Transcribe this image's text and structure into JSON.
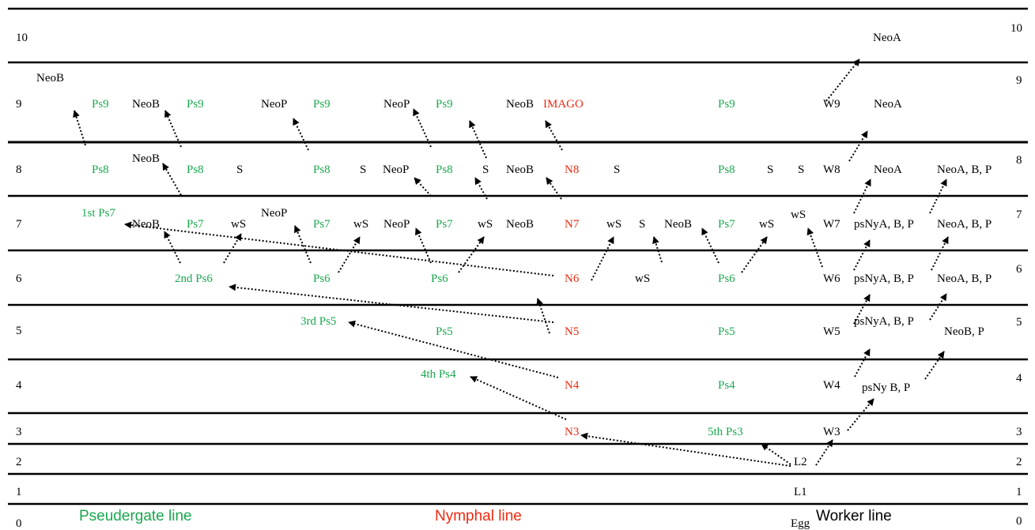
{
  "colors": {
    "pseudergate": "#1aa84f",
    "nymph": "#ee2a10",
    "worker": "#000000",
    "line": "#000000"
  },
  "stage_labels": [
    "0",
    "1",
    "2",
    "3",
    "4",
    "5",
    "6",
    "7",
    "8",
    "9",
    "10"
  ],
  "line_labels": {
    "pseudergate": "Pseudergate line",
    "nymphal": "Nymphal line",
    "worker": "Worker line",
    "egg": "Egg"
  },
  "nodes": {
    "neoB_top": "NeoB",
    "ps9_a": "Ps9",
    "neoB_9a": "NeoB",
    "ps9_b": "Ps9",
    "neoP_9a": "NeoP",
    "ps9_c": "Ps9",
    "neoP_9b": "NeoP",
    "ps9_d": "Ps9",
    "neoB_9b": "NeoB",
    "imago": "IMAGO",
    "ps9_e": "Ps9",
    "w9": "W9",
    "neoA_9": "NeoA",
    "neoA_10": "NeoA",
    "ps8_a": "Ps8",
    "neoB_8a": "NeoB",
    "ps8_b": "Ps8",
    "s8_a": "S",
    "ps8_c": "Ps8",
    "s8_b": "S",
    "neoP_8": "NeoP",
    "ps8_d": "Ps8",
    "s8_c": "S",
    "neoB_8b": "NeoB",
    "n8": "N8",
    "s8_d": "S",
    "ps8_e": "Ps8",
    "s8_e": "S",
    "s8_f": "S",
    "w8": "W8",
    "neoA_8": "NeoA",
    "neoABP_8": "NeoA, B, P",
    "ps7_1st": "1st Ps7",
    "neoB_7a": "NeoB",
    "ps7_b": "Ps7",
    "ws7_a": "wS",
    "neoP_7a": "NeoP",
    "ps7_c": "Ps7",
    "ws7_b": "wS",
    "neoP_7b": "NeoP",
    "ps7_d": "Ps7",
    "ws7_c": "wS",
    "neoB_7b": "NeoB",
    "n7": "N7",
    "ws7_d": "wS",
    "s7": "S",
    "neoB_7c": "NeoB",
    "ps7_e": "Ps7",
    "ws7_e": "wS",
    "ws7_f": "wS",
    "w7": "W7",
    "psNyABP_7": "psNyA, B, P",
    "neoABP_7": "NeoA, B, P",
    "ps6_2nd": "2nd Ps6",
    "ps6_b": "Ps6",
    "ps6_c": "Ps6",
    "n6": "N6",
    "ws6": "wS",
    "ps6_d": "Ps6",
    "w6": "W6",
    "psNyABP_6": "psNyA, B, P",
    "neoABP_6": "NeoA, B, P",
    "ps5_3rd": "3rd Ps5",
    "ps5_b": "Ps5",
    "n5": "N5",
    "ps5_c": "Ps5",
    "w5": "W5",
    "psNyABP_5": "psNyA, B, P",
    "neoBP_5": "NeoB, P",
    "ps4_4th": "4th Ps4",
    "n4": "N4",
    "ps4_b": "Ps4",
    "w4": "W4",
    "psNyBP_4": "psNy B, P",
    "n3": "N3",
    "ps3_5th": "5th Ps3",
    "w3": "W3",
    "l2": "L2",
    "l1": "L1"
  }
}
